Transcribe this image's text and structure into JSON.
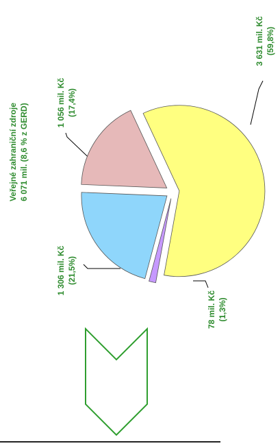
{
  "chart_data": {
    "type": "pie",
    "title": "Veřejné zahraniční zdroje",
    "subtitle": "6 071 mil. (8,6 % z GERD)",
    "categories": [
      null,
      null,
      null,
      null
    ],
    "values": [
      3631,
      78,
      1306,
      1056
    ],
    "value_labels": [
      "3 631 mil. Kč",
      "78 mil. Kč",
      "1 306 mil. Kč",
      "1 056 mil. Kč"
    ],
    "percent_labels": [
      "(59,8%)",
      "(1,3%)",
      "(21,5%)",
      "(17,4%)"
    ],
    "colors": [
      "#ffff80",
      "#c699ff",
      "#8fd6fb",
      "#e6b9b9"
    ]
  }
}
